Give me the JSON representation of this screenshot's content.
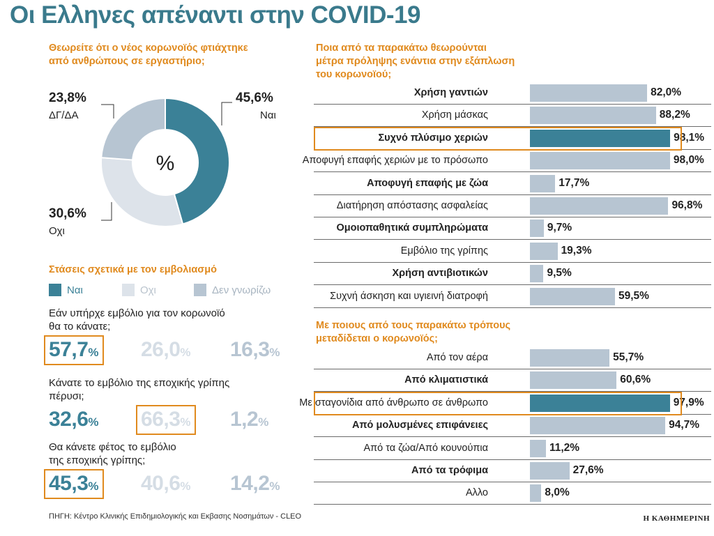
{
  "title": "Οι Ελληνες απέναντι στην COVID-19",
  "colors": {
    "teal": "#3b8197",
    "light_gray": "#dde3ea",
    "mid_gray": "#b7c5d2",
    "orange": "#e08a1e"
  },
  "chart_data": [
    {
      "type": "pie",
      "title_line1": "Θεωρείτε ότι ο νέος κορωνοϊός φτιάχτηκε",
      "title_line2": "από ανθρώπους σε εργαστήριο;",
      "center_label": "%",
      "slices": [
        {
          "label": "Ναι",
          "value": 45.6,
          "display": "45,6%",
          "color": "#3b8197"
        },
        {
          "label": "Οχι",
          "value": 30.6,
          "display": "30,6%",
          "color": "#dde3ea"
        },
        {
          "label": "ΔΓ/ΔΑ",
          "value": 23.8,
          "display": "23,8%",
          "color": "#b7c5d2"
        }
      ]
    },
    {
      "type": "table",
      "title": "Στάσεις σχετικά με τον εμβολιασμό",
      "legend": [
        {
          "label": "Ναι",
          "color": "#3b8197"
        },
        {
          "label": "Οχι",
          "color": "#dde3ea"
        },
        {
          "label": "Δεν γνωρίζω",
          "color": "#b7c5d2"
        }
      ],
      "questions": [
        {
          "line1": "Εάν υπήρχε εμβόλιο για τον κορωνοϊό",
          "line2": "θα το κάνατε;",
          "values": [
            "57,7",
            "26,0",
            "16,3"
          ],
          "highlight": 0
        },
        {
          "line1": "Κάνατε το εμβόλιο της εποχικής γρίπης",
          "line2": "πέρυσι;",
          "values": [
            "32,6",
            "66,3",
            "1,2"
          ],
          "highlight": 1
        },
        {
          "line1": "Θα κάνετε φέτος το εμβόλιο",
          "line2": "της εποχικής γρίπης;",
          "values": [
            "45,3",
            "40,6",
            "14,2"
          ],
          "highlight": 0
        }
      ],
      "pct": "%"
    },
    {
      "type": "bar",
      "title_line1": "Ποια από τα παρακάτω θεωρούνται",
      "title_line2": "μέτρα πρόληψης ενάντια στην εξάπλωση",
      "title_line3": "του κορωνοϊού;",
      "categories": [
        "Χρήση γαντιών",
        "Χρήση μάσκας",
        "Συχνό πλύσιμο χεριών",
        "Αποφυγή επαφής χεριών με το πρόσωπο",
        "Αποφυγή επαφής με ζώα",
        "Διατήρηση απόστασης ασφαλείας",
        "Ομοιοπαθητικά συμπληρώματα",
        "Εμβόλιο της γρίπης",
        "Χρήση αντιβιοτικών",
        "Συχνή άσκηση και υγιεινή διατροφή"
      ],
      "values": [
        82.0,
        88.2,
        98.1,
        98.0,
        17.7,
        96.8,
        9.7,
        19.3,
        9.5,
        59.5
      ],
      "labels": [
        "82,0%",
        "88,2%",
        "98,1%",
        "98,0%",
        "17,7%",
        "96,8%",
        "9,7%",
        "19,3%",
        "9,5%",
        "59,5%"
      ],
      "bold": [
        true,
        false,
        true,
        false,
        true,
        false,
        true,
        false,
        true,
        false
      ],
      "highlight": 2
    },
    {
      "type": "bar",
      "title_line1": "Με ποιους από τους παρακάτω τρόπους",
      "title_line2": "μεταδίδεται ο κορωνοϊός;",
      "categories": [
        "Από τον αέρα",
        "Από κλιματιστικά",
        "Με σταγονίδια από άνθρωπο σε άνθρωπο",
        "Από μολυσμένες επιφάνειες",
        "Από τα ζώα/Από κουνούπια",
        "Από τα τρόφιμα",
        "Αλλο"
      ],
      "values": [
        55.7,
        60.6,
        97.9,
        94.7,
        11.2,
        27.6,
        8.0
      ],
      "labels": [
        "55,7%",
        "60,6%",
        "97,9%",
        "94,7%",
        "11,2%",
        "27,6%",
        "8,0%"
      ],
      "bold": [
        false,
        true,
        false,
        true,
        false,
        true,
        false
      ],
      "highlight": 2
    }
  ],
  "source": "ΠΗΓΗ: Κέντρο Κλινικής Επιδημιολογικής και Εκβασης Νοσημάτων - CLEO",
  "brand": "Η ΚΑΘΗΜΕΡΙΝΗ"
}
